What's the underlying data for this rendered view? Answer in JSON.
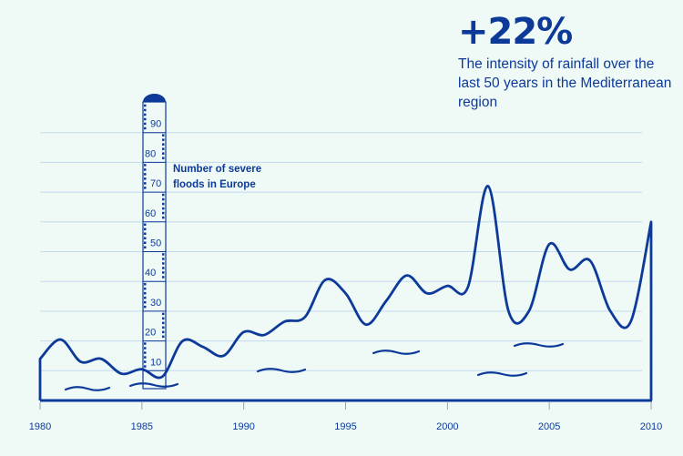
{
  "headline": {
    "value": "+22%",
    "description": "The intensity of rainfall over the last 50 years in the Mediterranean region"
  },
  "colors": {
    "line": "#0d3a99",
    "grid": "#c3d9ef",
    "background": "#effaf7",
    "axis_tick": "#9aa3b0"
  },
  "chart_data": {
    "type": "line",
    "title": "Number of severe floods in Europe",
    "series_label": "Number of severe floods in Europe",
    "x": [
      1980,
      1981,
      1982,
      1983,
      1984,
      1985,
      1986,
      1987,
      1988,
      1989,
      1990,
      1991,
      1992,
      1993,
      1994,
      1995,
      1996,
      1997,
      1998,
      1999,
      2000,
      2001,
      2002,
      2003,
      2004,
      2005,
      2006,
      2007,
      2008,
      2009,
      2010
    ],
    "values": [
      14,
      20.5,
      13,
      14,
      9,
      10.5,
      8,
      20,
      18,
      15,
      23,
      22,
      26.5,
      28,
      40.5,
      36,
      25.5,
      33.5,
      42,
      36,
      38.5,
      38,
      72,
      30,
      30,
      52.5,
      44,
      47,
      30,
      26.5,
      60
    ],
    "xlim": [
      1980,
      2010
    ],
    "ylim": [
      0,
      95
    ],
    "x_ticks": [
      "1980",
      "1985",
      "1990",
      "1995",
      "2000",
      "2005",
      "2010"
    ],
    "y_ticks": [
      "10",
      "20",
      "30",
      "40",
      "50",
      "60",
      "70",
      "80",
      "90"
    ],
    "grid": true,
    "legend": "none"
  }
}
